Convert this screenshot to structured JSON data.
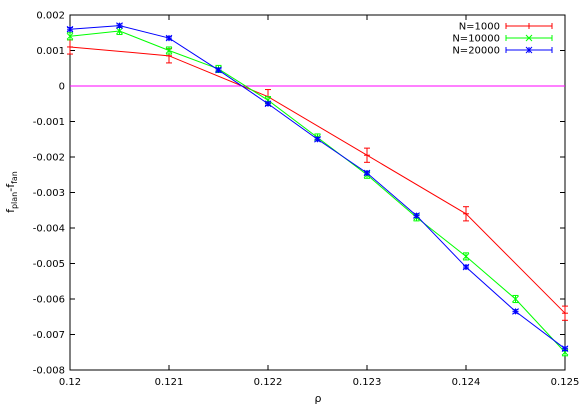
{
  "chart_data": {
    "type": "line",
    "title": "",
    "xlabel": "ρ",
    "ylabel_main": "f",
    "ylabel_sub1": "plan",
    "ylabel_dash": "-f",
    "ylabel_sub2": "fan",
    "xlim": [
      0.12,
      0.125
    ],
    "ylim": [
      -0.008,
      0.002
    ],
    "xticks": [
      "0.12",
      "0.121",
      "0.122",
      "0.123",
      "0.124",
      "0.125"
    ],
    "xtick_values": [
      0.12,
      0.121,
      0.122,
      0.123,
      0.124,
      0.125
    ],
    "yticks": [
      "0.002",
      "0.001",
      "0",
      "-0.001",
      "-0.002",
      "-0.003",
      "-0.004",
      "-0.005",
      "-0.006",
      "-0.007",
      "-0.008"
    ],
    "ytick_values": [
      0.002,
      0.001,
      0,
      -0.001,
      -0.002,
      -0.003,
      -0.004,
      -0.005,
      -0.006,
      -0.007,
      -0.008
    ],
    "zero_line": {
      "y": 0,
      "color": "#ff00ff"
    },
    "legend_position": "top-right",
    "series": [
      {
        "name": "N=1000",
        "color": "#ff0000",
        "marker": "plus",
        "x": [
          0.12,
          0.121,
          0.122,
          0.123,
          0.124,
          0.125
        ],
        "y": [
          0.0011,
          0.00085,
          -0.0003,
          -0.00195,
          -0.0036,
          -0.0064
        ],
        "err": [
          0.0002,
          0.0002,
          0.0002,
          0.0002,
          0.0002,
          0.0002
        ]
      },
      {
        "name": "N=10000",
        "color": "#00ff00",
        "marker": "cross",
        "x": [
          0.12,
          0.1205,
          0.121,
          0.1215,
          0.122,
          0.1225,
          0.123,
          0.1235,
          0.124,
          0.1245,
          0.125
        ],
        "y": [
          0.0014,
          0.00155,
          0.001,
          0.00048,
          -0.0004,
          -0.00145,
          -0.0025,
          -0.0037,
          -0.0048,
          -0.006,
          -0.0075
        ],
        "err": [
          0.0001,
          0.0001,
          0.0001,
          0.0001,
          0.0001,
          0.0001,
          0.0001,
          0.0001,
          0.0001,
          0.0001,
          0.0001
        ]
      },
      {
        "name": "N=20000",
        "color": "#0000ff",
        "marker": "star",
        "x": [
          0.12,
          0.1205,
          0.121,
          0.1215,
          0.122,
          0.1225,
          0.123,
          0.1235,
          0.124,
          0.1245,
          0.125
        ],
        "y": [
          0.0016,
          0.0017,
          0.00135,
          0.00045,
          -0.0005,
          -0.0015,
          -0.00245,
          -0.00365,
          -0.0051,
          -0.00635,
          -0.0074
        ],
        "err": [
          5e-05,
          5e-05,
          5e-05,
          5e-05,
          5e-05,
          5e-05,
          5e-05,
          5e-05,
          5e-05,
          5e-05,
          5e-05
        ]
      }
    ]
  }
}
